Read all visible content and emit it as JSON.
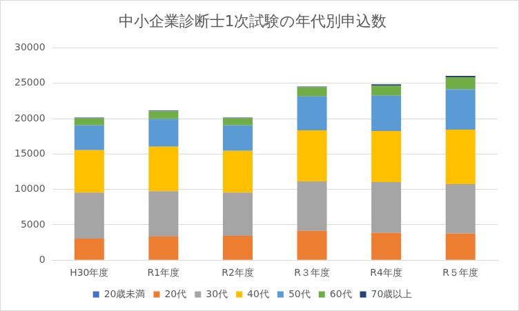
{
  "chart_data": {
    "type": "bar",
    "title": "中小企業診断士1次試験の年代別申込数",
    "categories": [
      "H30年度",
      "R1年度",
      "R2年度",
      "R３年度",
      "R4年度",
      "R５年度"
    ],
    "series": [
      {
        "name": "20歳未満",
        "color": "#4472c4",
        "values": [
          40,
          40,
          40,
          40,
          40,
          40
        ]
      },
      {
        "name": "20代",
        "color": "#ed7d31",
        "values": [
          3000,
          3300,
          3400,
          4100,
          3800,
          3700
        ]
      },
      {
        "name": "30代",
        "color": "#a5a5a5",
        "values": [
          6500,
          6400,
          6100,
          7000,
          7200,
          7000
        ]
      },
      {
        "name": "40代",
        "color": "#ffc000",
        "values": [
          6000,
          6300,
          5900,
          7200,
          7200,
          7700
        ]
      },
      {
        "name": "50代",
        "color": "#5b9bd5",
        "values": [
          3500,
          3900,
          3600,
          4800,
          5000,
          5700
        ]
      },
      {
        "name": "60代",
        "color": "#70ad47",
        "values": [
          1000,
          1100,
          1000,
          1300,
          1400,
          1700
        ]
      },
      {
        "name": "70歳以上",
        "color": "#264478",
        "values": [
          100,
          100,
          100,
          100,
          200,
          200
        ]
      }
    ],
    "ylim": [
      0,
      30000
    ],
    "yticks": [
      0,
      5000,
      10000,
      15000,
      20000,
      25000,
      30000
    ],
    "stacked": true,
    "grid": true,
    "legend": "bottom"
  }
}
